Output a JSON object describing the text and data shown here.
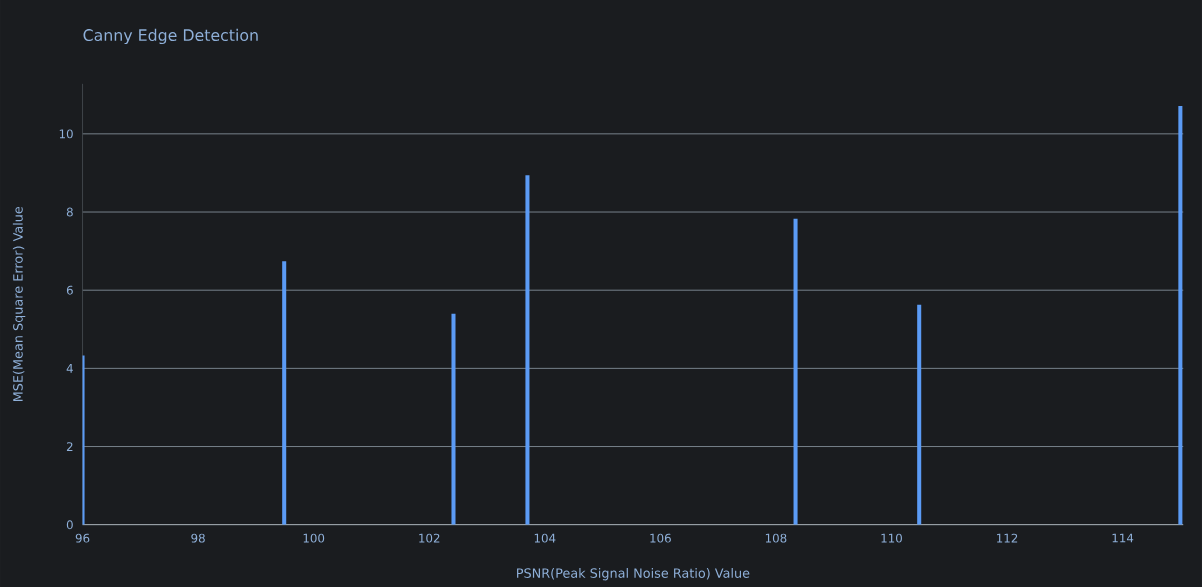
{
  "chart_data": {
    "type": "bar",
    "title": "Canny Edge Detection",
    "xlabel": "PSNR(Peak Signal Noise Ratio) Value",
    "ylabel": "MSE(Mean Square Error) Value",
    "x": [
      96,
      99.49,
      102.42,
      103.7,
      108.34,
      110.48,
      115
    ],
    "values": [
      4.33,
      6.74,
      5.4,
      8.94,
      7.83,
      5.63,
      10.71
    ],
    "color": "#5b9bf5",
    "xlim": [
      96,
      115.05
    ],
    "ylim": [
      0,
      11.28
    ],
    "xticks": [
      96,
      98,
      100,
      102,
      104,
      106,
      108,
      110,
      112,
      114
    ],
    "yticks": [
      0,
      2,
      4,
      6,
      8,
      10
    ],
    "grid": "y"
  }
}
